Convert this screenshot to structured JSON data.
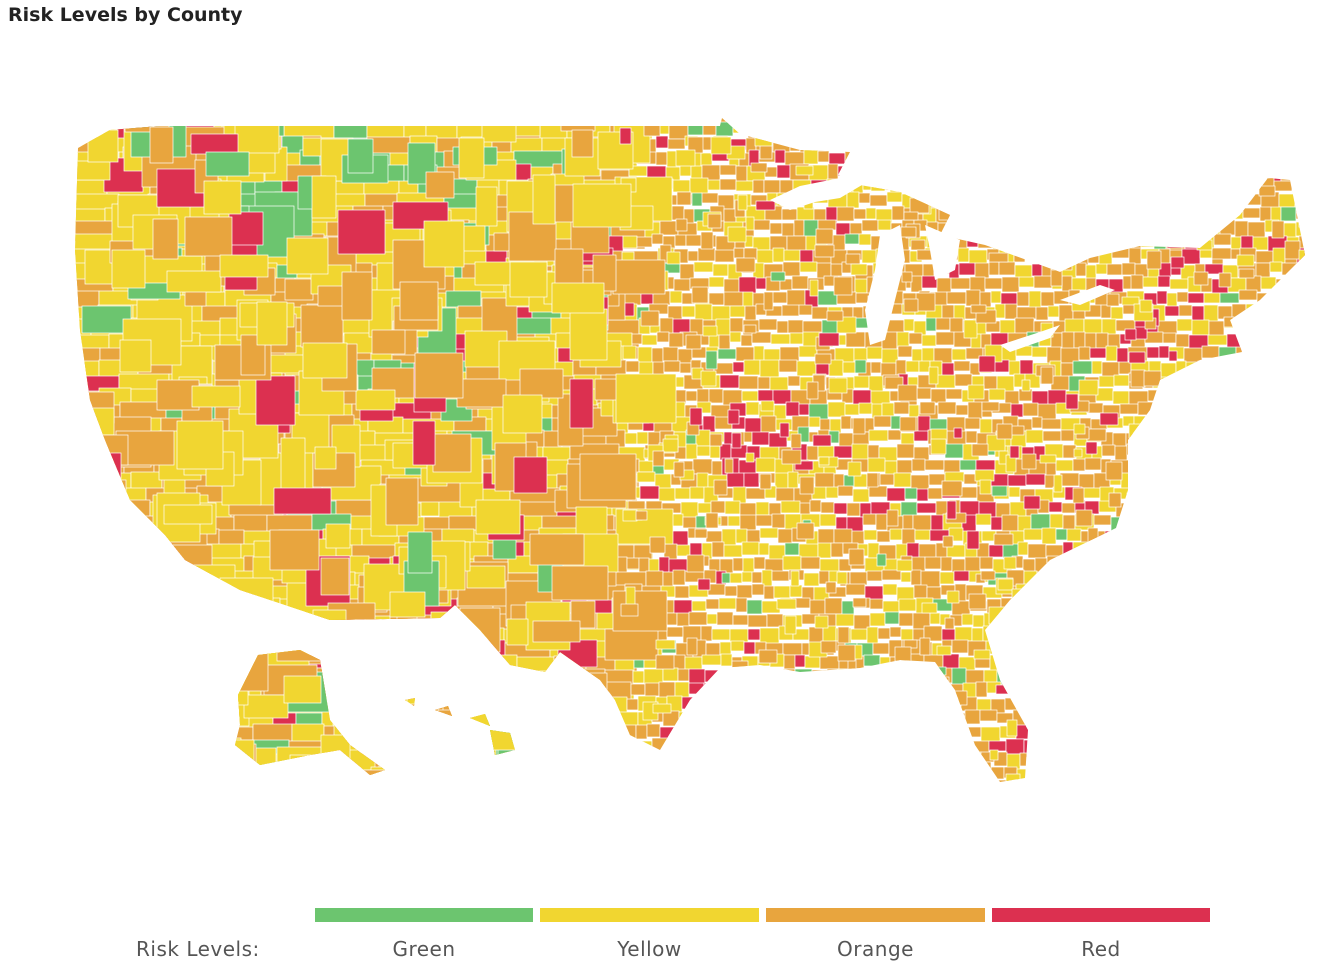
{
  "title": "Risk Levels by County",
  "legend": {
    "label": "Risk Levels:",
    "items": [
      {
        "name": "Green",
        "color": "#6cc56f"
      },
      {
        "name": "Yellow",
        "color": "#f1d630"
      },
      {
        "name": "Orange",
        "color": "#e8a53e"
      },
      {
        "name": "Red",
        "color": "#dc3050"
      }
    ]
  },
  "colors": {
    "green": "#6cc56f",
    "yellow": "#f1d630",
    "orange": "#e8a53e",
    "red": "#dc3050",
    "no_data": "#c8c8c8",
    "border": "#ffffff"
  },
  "regions": [
    "contiguous-us",
    "alaska",
    "hawaii"
  ]
}
